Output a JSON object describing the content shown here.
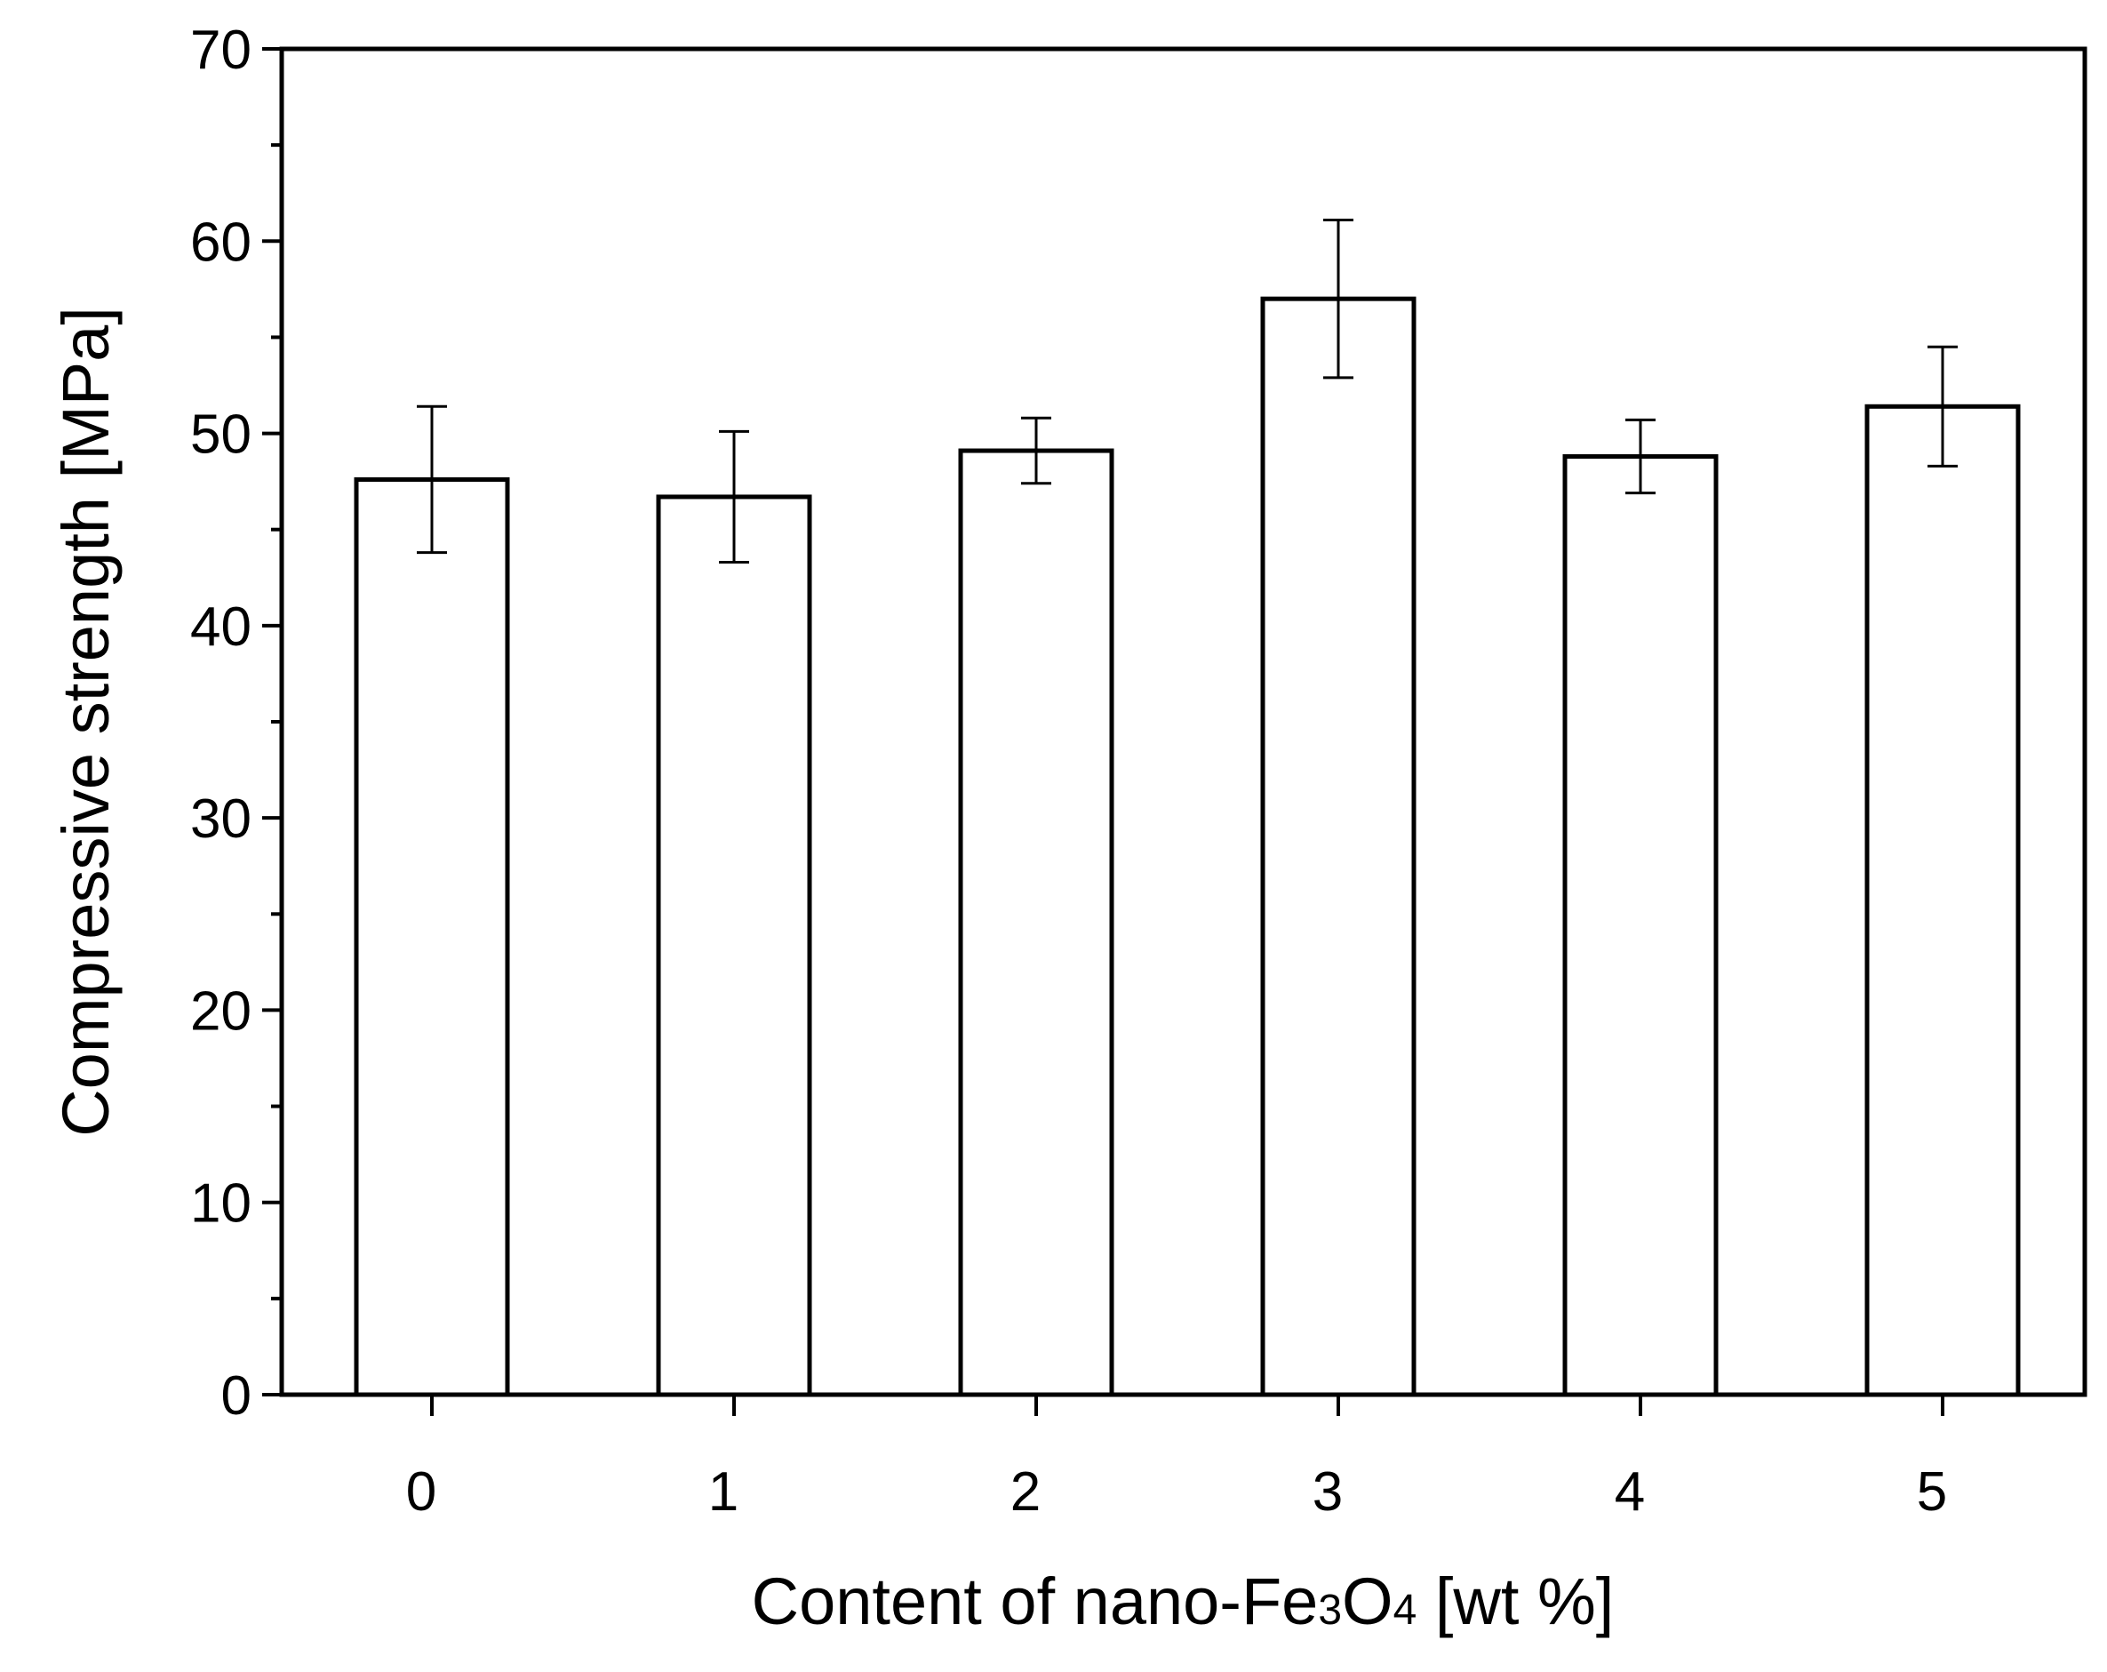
{
  "chart_data": {
    "type": "bar",
    "categories": [
      "0",
      "1",
      "2",
      "3",
      "4",
      "5"
    ],
    "series": [
      {
        "values": [
          47.6,
          46.7,
          49.1,
          57.0,
          48.8,
          51.4
        ],
        "errors": [
          3.8,
          3.4,
          1.7,
          4.1,
          1.9,
          3.1
        ]
      }
    ],
    "xlabel": {
      "prefix": "Content of nano-Fe",
      "sub1": "3",
      "mid": "O",
      "sub2": "4",
      "suffix": " [wt %]"
    },
    "ylabel": "Compressive strength [MPa]",
    "ylim": [
      0,
      70
    ],
    "yticks": [
      "0",
      "10",
      "20",
      "30",
      "40",
      "50",
      "60",
      "70"
    ],
    "y_minor_step": 5,
    "grid": false,
    "bar_fill": "#ffffff",
    "bar_stroke": "#000000"
  }
}
